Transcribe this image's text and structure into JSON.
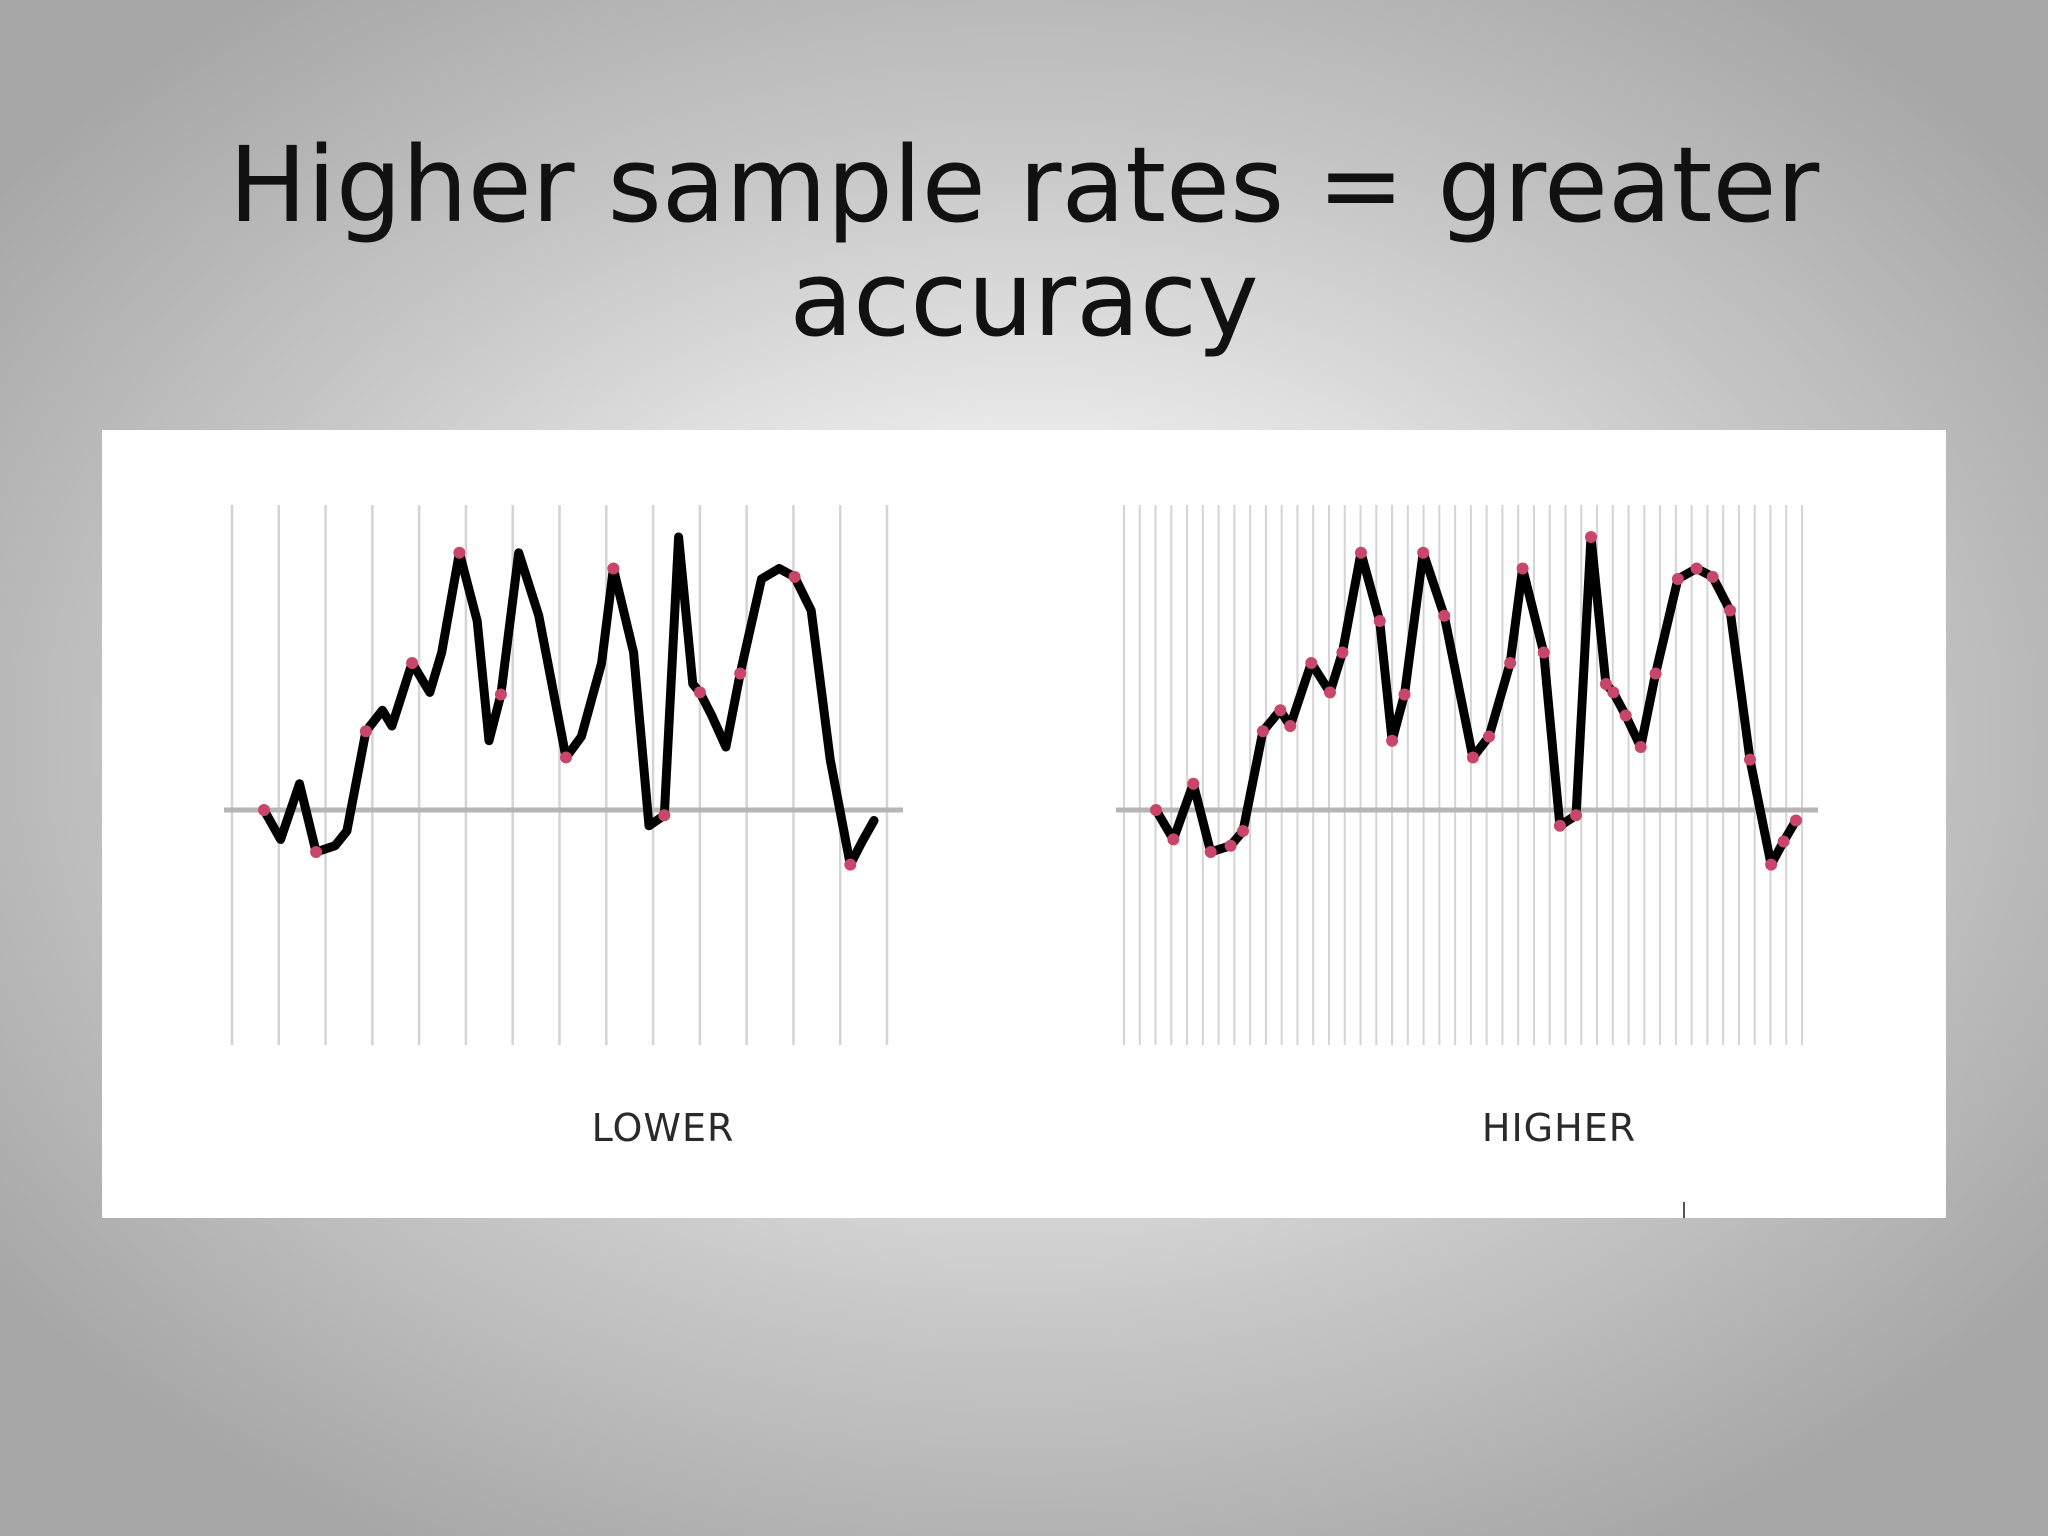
{
  "slide": {
    "title": "Higher sample rates = greater accuracy"
  },
  "figure": {
    "panels": [
      {
        "label": "LOWER"
      },
      {
        "label": "HIGHER"
      }
    ]
  },
  "colors": {
    "waveform": "#000000",
    "sample_point": "#c8466a",
    "sample_line": "#d4d4d4",
    "baseline": "#b5b5b5"
  }
}
